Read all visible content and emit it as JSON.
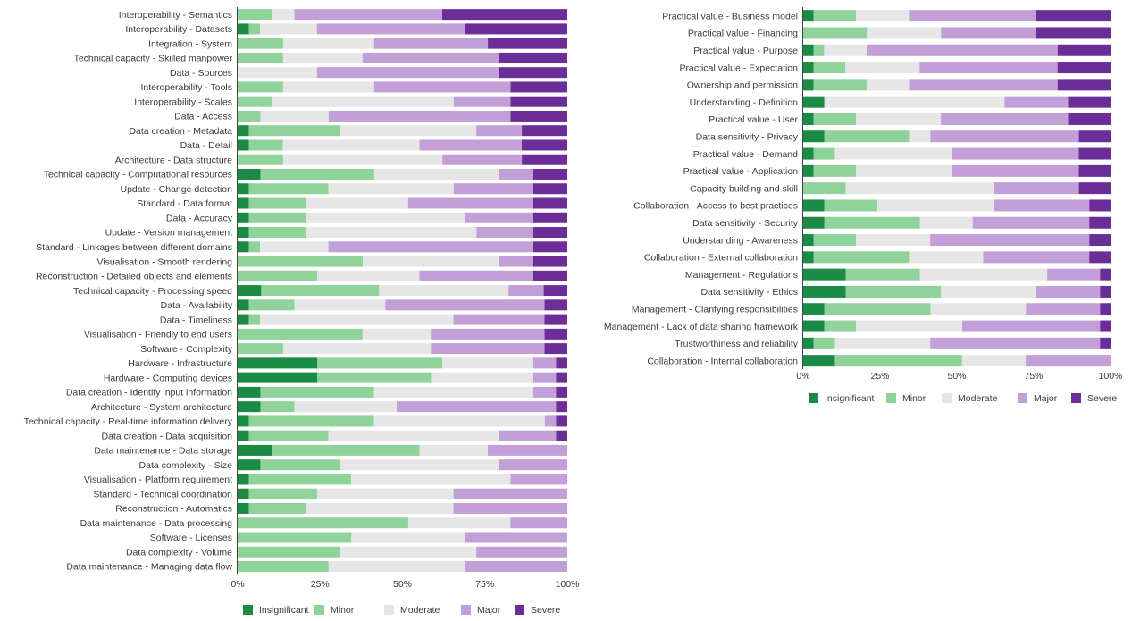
{
  "colors": [
    "#1a8a45",
    "#8fd39a",
    "#e6e6e6",
    "#c29fd6",
    "#6b2d97"
  ],
  "legend": [
    "Insignificant",
    "Minor",
    "Moderate",
    "Major",
    "Severe"
  ],
  "chart_data": [
    {
      "type": "bar",
      "orientation": "horizontal",
      "stacked": true,
      "x_ticks": [
        "0%",
        "25%",
        "50%",
        "75%",
        "100%"
      ],
      "xlim": [
        0,
        100
      ],
      "categories": [
        "Interoperability - Semantics",
        "Interoperability - Datasets",
        "Integration  - System",
        "Technical capacity - Skilled manpower",
        "Data - Sources",
        "Interoperability - Tools",
        "Interoperability - Scales",
        "Data - Access",
        "Data creation - Metadata",
        "Data - Detail",
        "Architecture - Data structure",
        "Technical capacity - Computational resources",
        "Update - Change detection",
        "Standard - Data format",
        "Data - Accuracy",
        "Update - Version management",
        "Standard - Linkages between different domains",
        "Visualisation - Smooth rendering",
        "Reconstruction - Detailed objects and elements",
        "Technical capacity - Processing speed",
        "Data - Availability",
        "Data - Timeliness",
        "Visualisation - Friendly to end users",
        "Software - Complexity",
        "Hardware - Infrastructure",
        "Hardware - Computing devices",
        "Data creation - Identify input information",
        "Architecture - System architecture",
        "Technical capacity - Real-time information delivery",
        "Data creation - Data acquisition",
        "Data maintenance - Data storage",
        "Data complexity - Size",
        "Visualisation - Platform requirement",
        "Standard - Technical coordination",
        "Reconstruction - Automatics",
        "Data maintenance - Data processing",
        "Software - Licenses",
        "Data complexity - Volume",
        "Data maintenance - Managing data flow"
      ],
      "series": [
        {
          "name": "Insignificant",
          "values": [
            0,
            3.4,
            0,
            0,
            0,
            0,
            0,
            0,
            3.4,
            3.4,
            0,
            6.9,
            3.4,
            3.4,
            3.4,
            3.4,
            3.4,
            0,
            0,
            6.9,
            3.4,
            3.4,
            0,
            0,
            24.1,
            24.1,
            6.9,
            6.9,
            3.4,
            3.4,
            10.3,
            6.9,
            3.4,
            3.4,
            3.4,
            0,
            0,
            0,
            0
          ]
        },
        {
          "name": "Minor",
          "values": [
            10.3,
            3.4,
            13.8,
            13.8,
            0,
            13.8,
            10.3,
            6.9,
            27.6,
            10.3,
            13.8,
            34.5,
            24.1,
            17.2,
            17.2,
            17.2,
            3.4,
            37.9,
            24.1,
            34.5,
            13.8,
            3.4,
            37.9,
            13.8,
            37.9,
            34.5,
            34.5,
            10.3,
            37.9,
            24.1,
            44.8,
            24.1,
            31.0,
            20.7,
            17.2,
            51.7,
            34.5,
            31.0,
            27.6
          ]
        },
        {
          "name": "Moderate",
          "values": [
            6.9,
            17.2,
            27.6,
            24.1,
            24.1,
            27.6,
            55.2,
            20.7,
            41.4,
            41.4,
            48.3,
            37.9,
            37.9,
            31.0,
            48.3,
            51.7,
            20.7,
            41.4,
            31.0,
            37.9,
            27.6,
            58.6,
            20.7,
            44.8,
            27.6,
            31.0,
            48.3,
            31.0,
            51.7,
            51.7,
            20.7,
            48.3,
            48.3,
            41.4,
            44.8,
            31.0,
            34.5,
            41.4,
            41.4
          ]
        },
        {
          "name": "Major",
          "values": [
            44.8,
            44.8,
            34.5,
            41.4,
            55.2,
            41.4,
            17.2,
            55.2,
            13.8,
            31.0,
            24.1,
            10.3,
            24.1,
            37.9,
            20.7,
            17.2,
            62.1,
            10.3,
            34.5,
            10.3,
            48.3,
            27.6,
            34.5,
            34.5,
            6.9,
            6.9,
            6.9,
            48.3,
            3.4,
            17.2,
            24.1,
            20.7,
            17.2,
            34.5,
            34.5,
            17.2,
            31.0,
            27.6,
            31.0
          ]
        },
        {
          "name": "Severe",
          "values": [
            37.9,
            31.0,
            24.1,
            20.7,
            20.7,
            17.2,
            17.2,
            17.2,
            13.8,
            13.8,
            13.8,
            10.3,
            10.3,
            10.3,
            10.3,
            10.3,
            10.3,
            10.3,
            10.3,
            6.9,
            6.9,
            6.9,
            6.9,
            6.9,
            3.4,
            3.4,
            3.4,
            3.4,
            3.4,
            3.4,
            0,
            0,
            0,
            0,
            0,
            0,
            0,
            0,
            0
          ]
        }
      ]
    },
    {
      "type": "bar",
      "orientation": "horizontal",
      "stacked": true,
      "x_ticks": [
        "0%",
        "25%",
        "50%",
        "75%",
        "100%"
      ],
      "xlim": [
        0,
        100
      ],
      "categories": [
        "Practical value - Business model",
        "Practical value - Financing",
        "Practical value - Purpose",
        "Practical value - Expectation",
        "Ownership and permission",
        "Understanding - Definition",
        "Practical value - User",
        "Data sensitivity - Privacy",
        "Practical value - Demand",
        "Practical value - Application",
        "Capacity building and skill",
        "Collaboration - Access to best practices",
        "Data sensitivity - Security",
        "Understanding - Awareness",
        "Collaboration - External collaboration",
        "Management - Regulations",
        "Data sensitivity - Ethics",
        "Management - Clarifying responsibilities",
        "Management - Lack of data sharing framework",
        "Trustworthiness and reliability",
        "Collaboration - Internal collaboration"
      ],
      "series": [
        {
          "name": "Insignificant",
          "values": [
            3.4,
            0,
            3.4,
            3.4,
            3.4,
            6.9,
            3.4,
            6.9,
            3.4,
            3.4,
            0,
            6.9,
            6.9,
            3.4,
            3.4,
            13.8,
            13.8,
            6.9,
            6.9,
            3.4,
            10.3
          ]
        },
        {
          "name": "Minor",
          "values": [
            13.8,
            20.7,
            3.4,
            10.3,
            17.2,
            0,
            13.8,
            27.6,
            6.9,
            13.8,
            13.8,
            17.2,
            31.0,
            13.8,
            31.0,
            24.1,
            31.0,
            34.5,
            10.3,
            6.9,
            41.4
          ]
        },
        {
          "name": "Moderate",
          "values": [
            17.2,
            24.1,
            13.8,
            24.1,
            13.8,
            58.6,
            27.6,
            6.9,
            37.9,
            31.0,
            48.3,
            37.9,
            17.2,
            24.1,
            24.1,
            41.4,
            31.0,
            31.0,
            34.5,
            31.0,
            20.7
          ]
        },
        {
          "name": "Major",
          "values": [
            41.4,
            31.0,
            62.1,
            44.8,
            48.3,
            20.7,
            41.4,
            48.3,
            41.4,
            41.4,
            27.6,
            31.0,
            37.9,
            51.7,
            34.5,
            17.2,
            20.7,
            24.1,
            44.8,
            55.2,
            27.6
          ]
        },
        {
          "name": "Severe",
          "values": [
            24.1,
            24.1,
            17.2,
            17.2,
            17.2,
            13.8,
            13.8,
            10.3,
            10.3,
            10.3,
            10.3,
            6.9,
            6.9,
            6.9,
            6.9,
            3.4,
            3.4,
            3.4,
            3.4,
            3.4,
            0
          ]
        }
      ]
    }
  ]
}
